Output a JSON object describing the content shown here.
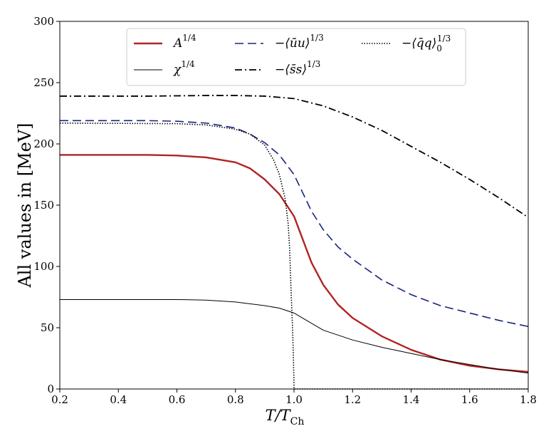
{
  "chart_data": {
    "type": "line",
    "xlabel": "T/T_Ch",
    "xlabel_parts": {
      "main": "T/T",
      "sub": "Ch"
    },
    "ylabel": "All values in [MeV]",
    "xlim": [
      0.2,
      1.8
    ],
    "ylim": [
      0,
      300
    ],
    "xticks": [
      0.2,
      0.4,
      0.6,
      0.8,
      1.0,
      1.2,
      1.4,
      1.6,
      1.8
    ],
    "xtick_labels": [
      "0.2",
      "0.4",
      "0.6",
      "0.8",
      "1.0",
      "1.2",
      "1.4",
      "1.6",
      "1.8"
    ],
    "yticks": [
      0,
      50,
      100,
      150,
      200,
      250,
      300
    ],
    "ytick_labels": [
      "0",
      "50",
      "100",
      "150",
      "200",
      "250",
      "300"
    ],
    "grid": false,
    "legend_position": "top-center",
    "series": [
      {
        "name": "A^{1/4}",
        "label_parts": {
          "base": "A",
          "sup": "1/4"
        },
        "color": "#b22222",
        "style": "solid",
        "x": [
          0.2,
          0.5,
          0.6,
          0.7,
          0.8,
          0.85,
          0.9,
          0.95,
          1.0,
          1.03,
          1.06,
          1.1,
          1.15,
          1.2,
          1.3,
          1.4,
          1.5,
          1.6,
          1.7,
          1.8
        ],
        "y": [
          191,
          191,
          190.5,
          189,
          185,
          180,
          171,
          159,
          141,
          122,
          103,
          85,
          69,
          58,
          43,
          32,
          24,
          19,
          16,
          14
        ]
      },
      {
        "name": "χ^{1/4}",
        "label_parts": {
          "base": "χ",
          "sup": "1/4"
        },
        "color": "#000000",
        "style": "thin",
        "x": [
          0.2,
          0.6,
          0.7,
          0.8,
          0.9,
          0.95,
          1.0,
          1.05,
          1.1,
          1.2,
          1.3,
          1.4,
          1.5,
          1.6,
          1.7,
          1.8
        ],
        "y": [
          73,
          73,
          72.5,
          71,
          68,
          66,
          62,
          55,
          48,
          40,
          34,
          29,
          24,
          20,
          16,
          13
        ]
      },
      {
        "name": "−⟨ūu⟩^{1/3}",
        "label_parts": {
          "base": "−⟨ūu⟩",
          "sup": "1/3"
        },
        "color": "#1a237e",
        "style": "dashed",
        "x": [
          0.2,
          0.5,
          0.6,
          0.7,
          0.8,
          0.85,
          0.9,
          0.95,
          1.0,
          1.03,
          1.06,
          1.1,
          1.15,
          1.2,
          1.3,
          1.4,
          1.5,
          1.6,
          1.7,
          1.8
        ],
        "y": [
          219,
          219,
          218.5,
          217,
          213,
          208,
          201,
          191,
          175,
          160,
          145,
          130,
          116,
          106,
          89,
          77,
          68,
          62,
          56,
          51
        ]
      },
      {
        "name": "−⟨s̄s⟩^{1/3}",
        "label_parts": {
          "base": "−⟨s̄s⟩",
          "sup": "1/3"
        },
        "color": "#000000",
        "style": "dashdot",
        "x": [
          0.2,
          0.5,
          0.7,
          0.8,
          0.9,
          1.0,
          1.1,
          1.2,
          1.3,
          1.4,
          1.5,
          1.6,
          1.7,
          1.8
        ],
        "y": [
          239,
          239,
          239.5,
          239.5,
          239,
          237,
          231,
          222,
          211,
          198,
          185,
          171,
          156,
          140
        ]
      },
      {
        "name": "−⟨q̄q⟩_0^{1/3}",
        "label_parts": {
          "base": "−⟨q̄q⟩",
          "sub": "0",
          "sup": "1/3"
        },
        "color": "#000000",
        "style": "dotted",
        "x": [
          0.2,
          0.6,
          0.7,
          0.8,
          0.85,
          0.9,
          0.93,
          0.95,
          0.97,
          0.98,
          0.985,
          0.99,
          0.995,
          0.998,
          1.0,
          1.0001,
          1.8
        ],
        "y": [
          217,
          216.5,
          215.5,
          212,
          208,
          199,
          187,
          175,
          155,
          135,
          115,
          80,
          50,
          25,
          3,
          0,
          0
        ]
      }
    ]
  }
}
